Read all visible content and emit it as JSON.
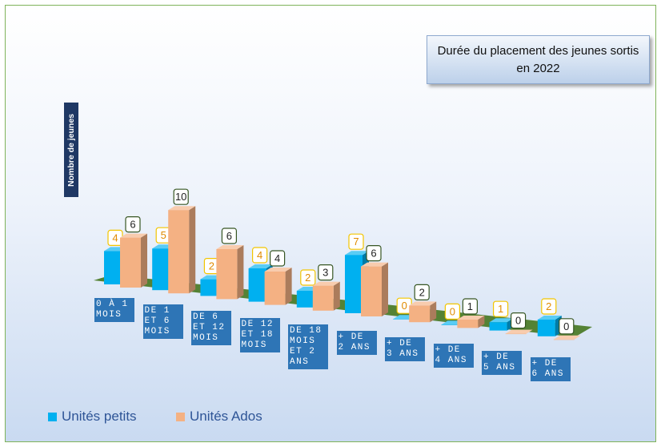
{
  "chart_data": {
    "type": "bar3d",
    "title": "Durée du placement des jeunes sortis en 2022",
    "y_label": "Nombre de jeunes",
    "categories": [
      "0 À 1 MOIS",
      "DE 1 ET 6 MOIS",
      "DE 6 ET 12 MOIS",
      "DE 12 ET 18 MOIS",
      "DE 18 MOIS ET 2 ANS",
      "+ DE 2 ANS",
      "+ DE 3 ANS",
      "+ DE 4 ANS",
      "+ DE 5 ANS",
      "+ DE 6 ANS"
    ],
    "series": [
      {
        "name": "Unités petits",
        "color": "#00b0f0",
        "values": [
          4,
          5,
          2,
          4,
          2,
          7,
          0,
          0,
          1,
          2
        ]
      },
      {
        "name": "Unités Ados",
        "color": "#f4b183",
        "values": [
          6,
          10,
          6,
          4,
          3,
          6,
          2,
          1,
          0,
          0
        ]
      }
    ],
    "ylim": [
      0,
      10
    ],
    "legend": "bottom-left"
  }
}
